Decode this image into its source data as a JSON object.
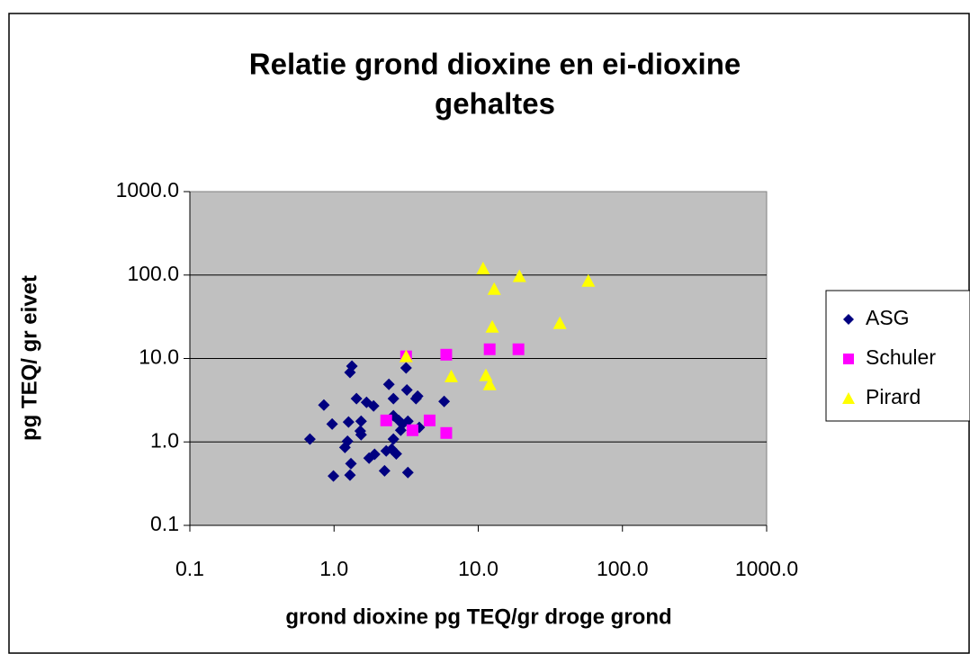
{
  "chart_data": {
    "type": "scatter",
    "title": [
      "Relatie grond dioxine en ei-dioxine",
      "gehaltes"
    ],
    "xlabel": "grond dioxine pg TEQ/gr droge grond",
    "ylabel": "pg TEQ/ gr eivet",
    "xscale": "log",
    "yscale": "log",
    "xlim": [
      0.1,
      1000
    ],
    "ylim": [
      0.1,
      1000
    ],
    "xticks": [
      0.1,
      {
        "value": 1,
        "label": "1.0"
      },
      {
        "value": 10,
        "label": "10.0"
      },
      {
        "value": 100,
        "label": "100.0"
      },
      {
        "value": 1000,
        "label": "1000.0"
      }
    ],
    "yticks": [
      0.1,
      {
        "value": 1,
        "label": "1.0"
      },
      {
        "value": 10,
        "label": "10.0"
      },
      {
        "value": 100,
        "label": "100.0"
      },
      {
        "value": 1000,
        "label": "1000.0"
      }
    ],
    "grid": true,
    "legend": "right",
    "series": [
      {
        "name": "ASG",
        "color": "#000080",
        "marker": "diamond",
        "x": [
          0.68,
          0.85,
          0.97,
          0.99,
          1.19,
          1.24,
          1.26,
          1.29,
          1.31,
          1.29,
          1.33,
          1.43,
          1.54,
          1.54,
          1.52,
          1.68,
          1.75,
          1.88,
          1.91,
          2.24,
          2.3,
          2.4,
          2.51,
          2.58,
          2.58,
          2.58,
          2.7,
          2.81,
          2.9,
          2.98,
          3.16,
          3.2,
          3.25,
          3.25,
          3.7,
          3.8,
          3.9,
          5.8
        ],
        "values": [
          1.08,
          2.77,
          1.64,
          0.39,
          0.86,
          1.02,
          1.73,
          0.4,
          0.55,
          6.8,
          8.1,
          3.3,
          1.77,
          1.22,
          1.35,
          2.98,
          0.64,
          2.7,
          0.71,
          0.45,
          0.78,
          4.9,
          0.82,
          3.3,
          2.06,
          1.08,
          0.72,
          1.81,
          1.38,
          1.64,
          7.7,
          4.2,
          0.43,
          1.77,
          3.3,
          3.54,
          1.49,
          3.06
        ]
      },
      {
        "name": "Schuler",
        "color": "#ff00ff",
        "marker": "square",
        "x": [
          2.3,
          3.16,
          3.5,
          4.6,
          6.0,
          6.0,
          12.0,
          19.0
        ],
        "values": [
          1.81,
          10.6,
          1.38,
          1.81,
          11.1,
          1.28,
          12.9,
          12.9
        ]
      },
      {
        "name": "Pirard",
        "color": "#ffff00",
        "marker": "triangle",
        "x": [
          3.16,
          6.5,
          10.8,
          11.3,
          12.0,
          12.5,
          12.9,
          19.3,
          36.8,
          58
        ],
        "values": [
          10.6,
          6.1,
          120,
          6.3,
          4.9,
          24,
          68,
          97,
          26.5,
          85
        ]
      }
    ]
  }
}
